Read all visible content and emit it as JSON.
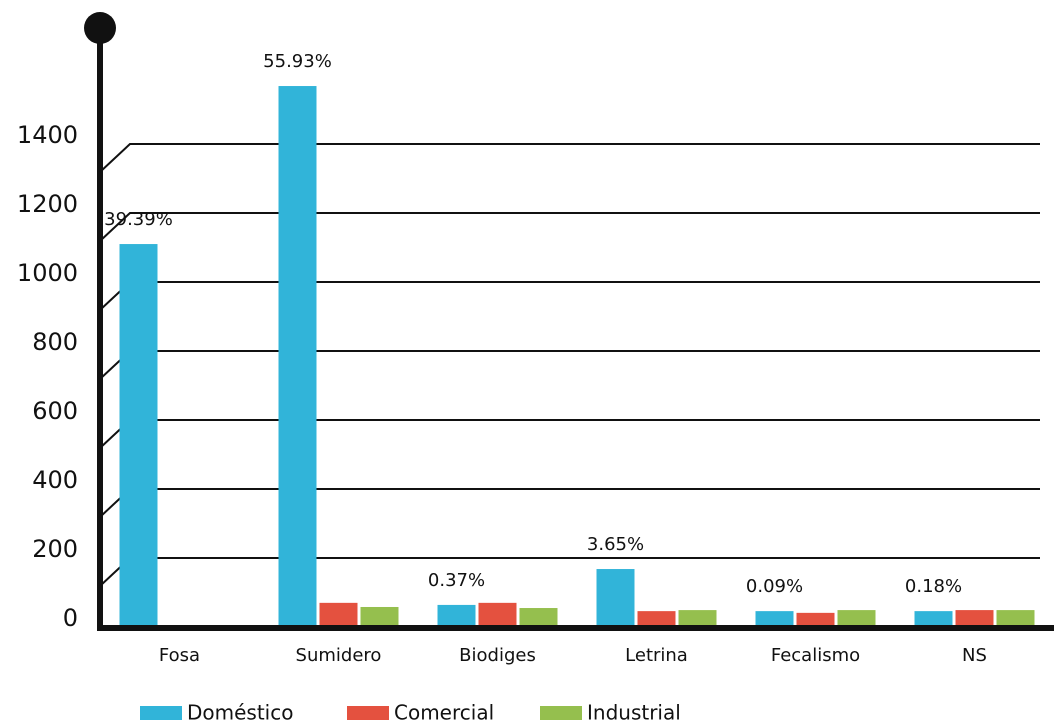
{
  "chart_data": {
    "type": "bar",
    "categories": [
      "Fosa",
      "Sumidero",
      "Biodiges",
      "Letrina",
      "Fecalismo",
      "NS"
    ],
    "series": [
      {
        "name": "Doméstico",
        "color": "#31b4d9",
        "values": [
          1110,
          1568,
          64,
          168,
          46,
          46
        ]
      },
      {
        "name": "Comercial",
        "color": "#e4513f",
        "values": [
          0,
          70,
          70,
          46,
          41,
          49
        ]
      },
      {
        "name": "Industrial",
        "color": "#95bf4e",
        "values": [
          0,
          58,
          55,
          49,
          49,
          49
        ]
      }
    ],
    "annotations": [
      "39.39%",
      "55.93%",
      "0.37%",
      "3.65%",
      "0.09%",
      "0.18%"
    ],
    "ylim": [
      0,
      1600
    ],
    "yticks": [
      0,
      200,
      400,
      600,
      800,
      1000,
      1200,
      1400
    ],
    "grid": true,
    "legend": "bottom"
  }
}
